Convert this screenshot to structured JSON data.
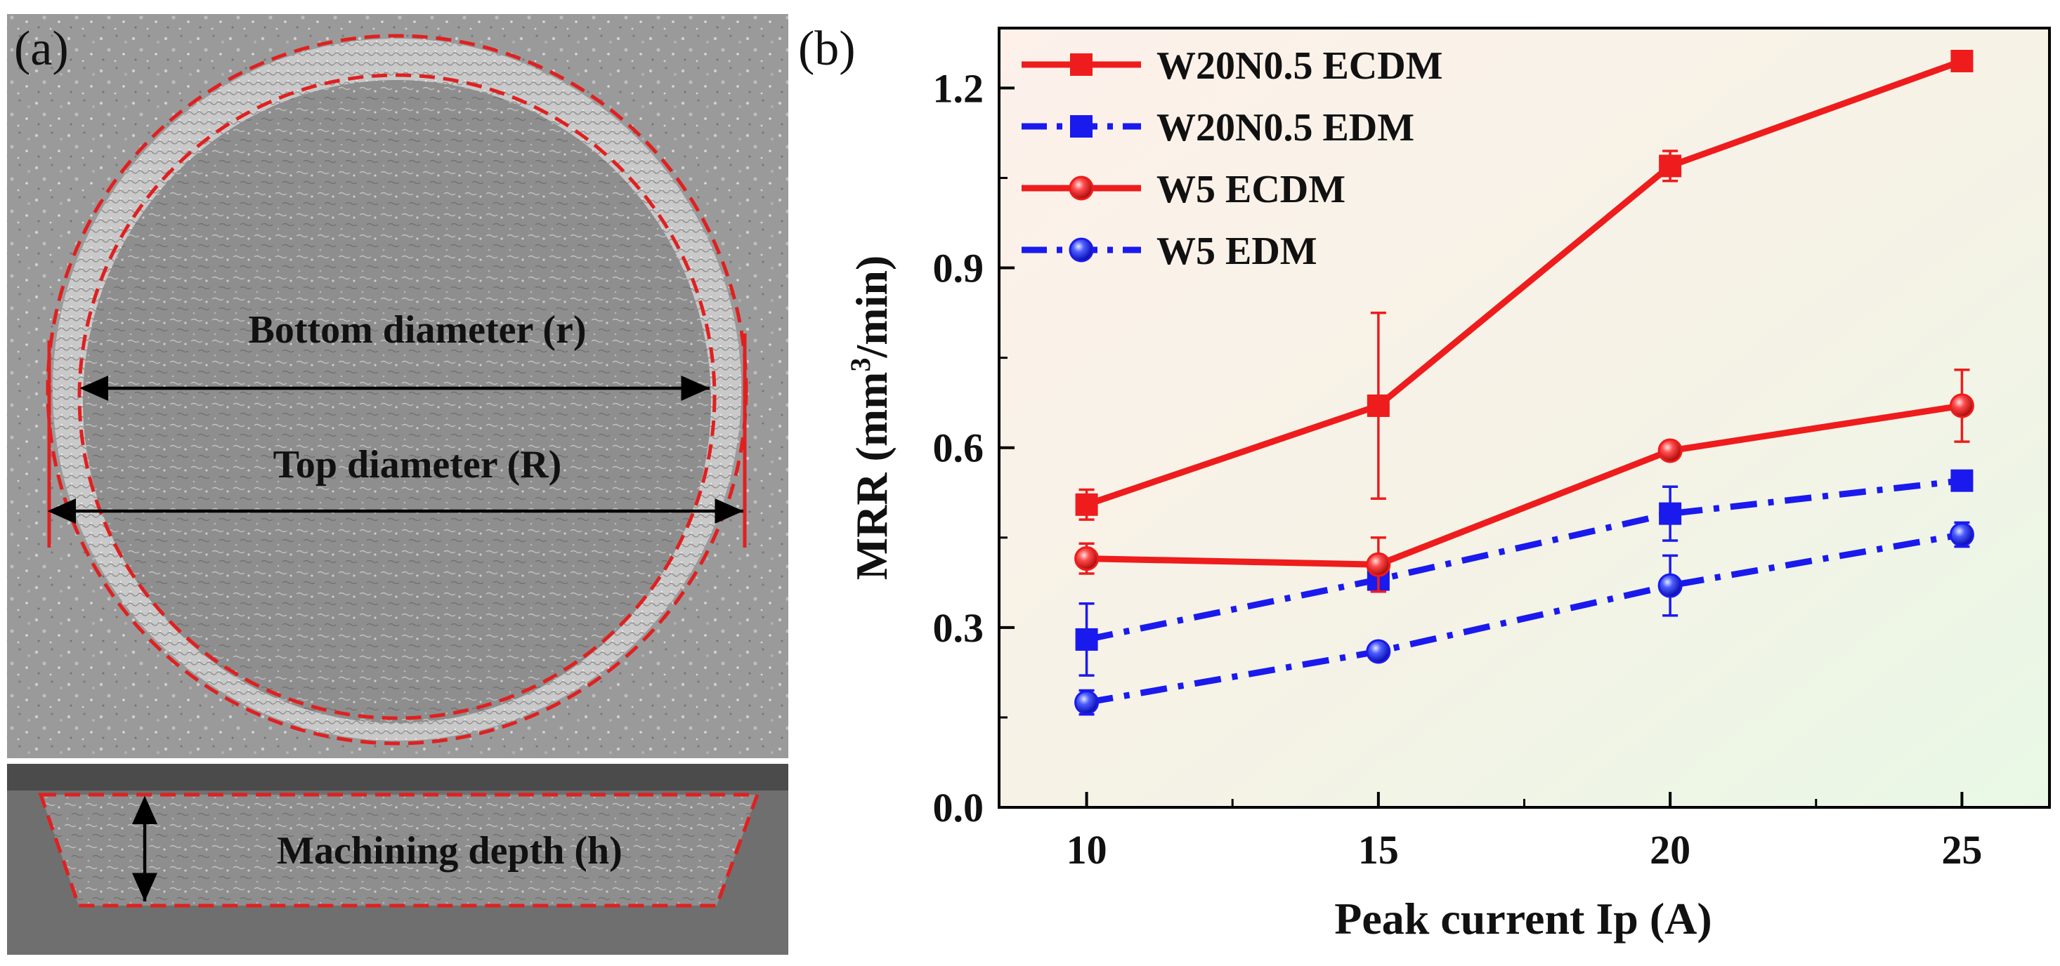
{
  "panel_a": {
    "label": "(a)",
    "annotations": {
      "bottom_diameter": "Bottom diameter (r)",
      "top_diameter": "Top diameter (R)",
      "machining_depth": "Machining depth (h)"
    },
    "colors": {
      "outline": "#e02020",
      "arrow": "#000000"
    }
  },
  "chart_data": {
    "type": "line",
    "panel_label": "(b)",
    "title": "",
    "xlabel": "Peak current Ip (A)",
    "ylabel_main": "MRR (mm",
    "ylabel_sup": "3",
    "ylabel_tail": "/min)",
    "x": [
      10,
      15,
      20,
      25
    ],
    "xlim": [
      8.5,
      26.5
    ],
    "ylim": [
      0.0,
      1.3
    ],
    "x_ticks": [
      "10",
      "15",
      "20",
      "25"
    ],
    "x_tick_values": [
      10,
      15,
      20,
      25
    ],
    "y_ticks": [
      "0.0",
      "0.3",
      "0.6",
      "0.9",
      "1.2"
    ],
    "y_tick_values": [
      0.0,
      0.3,
      0.6,
      0.9,
      1.2
    ],
    "legend_position": "top-left",
    "series": [
      {
        "name": "W20N0.5 ECDM",
        "color": "#ee1c1c",
        "marker": "square",
        "dash": "solid",
        "values": [
          0.505,
          0.67,
          1.07,
          1.245
        ],
        "errors": [
          0.025,
          0.155,
          0.025,
          0.012
        ]
      },
      {
        "name": "W20N0.5 EDM",
        "color": "#1a1aee",
        "marker": "square",
        "dash": "dashdot",
        "values": [
          0.28,
          0.38,
          0.49,
          0.545
        ],
        "errors": [
          0.06,
          0.02,
          0.045,
          0.01
        ]
      },
      {
        "name": "W5 ECDM",
        "color": "#ee1c1c",
        "marker": "sphere",
        "dash": "solid",
        "values": [
          0.415,
          0.405,
          0.595,
          0.67
        ],
        "errors": [
          0.025,
          0.045,
          0.01,
          0.06
        ]
      },
      {
        "name": "W5 EDM",
        "color": "#1a1aee",
        "marker": "sphere",
        "dash": "dashdot",
        "values": [
          0.175,
          0.26,
          0.37,
          0.455
        ],
        "errors": [
          0.02,
          0.01,
          0.05,
          0.02
        ]
      }
    ]
  }
}
